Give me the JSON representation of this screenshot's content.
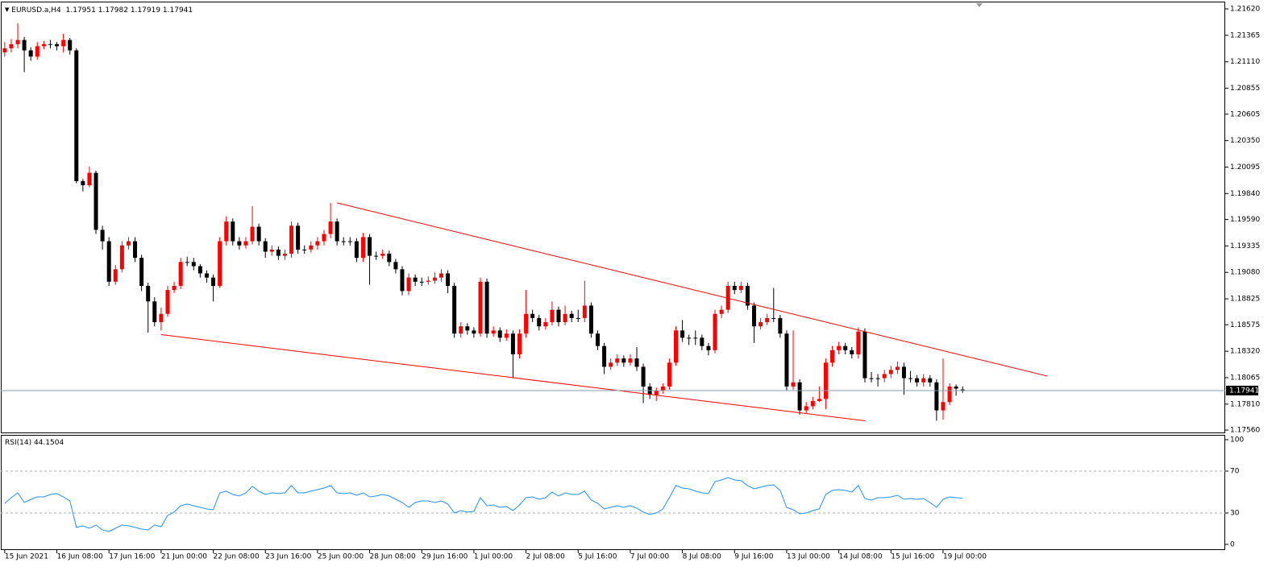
{
  "chart_data": [
    {
      "type": "candlestick",
      "title": "EURUSD.a,H4",
      "categories": [
        "15 Jun 2021",
        null,
        null,
        null,
        null,
        null,
        null,
        null,
        "16 Jun 08:00",
        null,
        null,
        null,
        null,
        null,
        null,
        null,
        "17 Jun 16:00",
        null,
        null,
        null,
        null,
        null,
        null,
        null,
        "21 Jun 00:00",
        null,
        null,
        null,
        null,
        null,
        null,
        null,
        "22 Jun 08:00",
        null,
        null,
        null,
        null,
        null,
        null,
        null,
        "23 Jun 16:00",
        null,
        null,
        null,
        null,
        null,
        null,
        null,
        "25 Jun 00:00",
        null,
        null,
        null,
        null,
        null,
        null,
        null,
        "28 Jun 08:00",
        null,
        null,
        null,
        null,
        null,
        null,
        null,
        "29 Jun 16:00",
        null,
        null,
        null,
        null,
        null,
        null,
        null,
        "1 Jul 00:00",
        null,
        null,
        null,
        null,
        null,
        null,
        null,
        "2 Jul 08:00",
        null,
        null,
        null,
        null,
        null,
        null,
        null,
        "5 Jul 16:00",
        null,
        null,
        null,
        null,
        null,
        null,
        null,
        "7 Jul 00:00",
        null,
        null,
        null,
        null,
        null,
        null,
        null,
        "8 Jul 08:00",
        null,
        null,
        null,
        null,
        null,
        null,
        null,
        "9 Jul 16:00",
        null,
        null,
        null,
        null,
        null,
        null,
        null,
        "13 Jul 00:00",
        null,
        null,
        null,
        null,
        null,
        null,
        null,
        "14 Jul 08:00",
        null,
        null,
        null,
        null,
        null,
        null,
        null,
        "15 Jul 16:00",
        null,
        null,
        null,
        null,
        null,
        null,
        null,
        "19 Jul 00:00",
        null,
        null,
        null
      ],
      "values": [
        [
          1.212,
          1.213,
          1.2116,
          1.2124
        ],
        [
          1.2124,
          1.2133,
          1.212,
          1.2128
        ],
        [
          1.2128,
          1.2148,
          1.2124,
          1.2132
        ],
        [
          1.2132,
          1.2135,
          1.2101,
          1.2122
        ],
        [
          1.2122,
          1.2125,
          1.2112,
          1.2116
        ],
        [
          1.2116,
          1.213,
          1.2113,
          1.2126
        ],
        [
          1.2126,
          1.2131,
          1.2123,
          1.2128
        ],
        [
          1.2128,
          1.2132,
          1.2124,
          1.2128
        ],
        [
          1.2128,
          1.213,
          1.2122,
          1.2126
        ],
        [
          1.2126,
          1.2138,
          1.212,
          1.2132
        ],
        [
          1.2132,
          1.2134,
          1.2118,
          1.2122
        ],
        [
          1.2122,
          1.2124,
          1.1994,
          1.1996
        ],
        [
          1.1996,
          1.1998,
          1.1986,
          1.1992
        ],
        [
          1.1992,
          1.201,
          1.199,
          1.2004
        ],
        [
          1.2004,
          1.2006,
          1.1945,
          1.1949
        ],
        [
          1.1949,
          1.1953,
          1.193,
          1.1938
        ],
        [
          1.1938,
          1.1942,
          1.1895,
          1.1899
        ],
        [
          1.1899,
          1.1915,
          1.1896,
          1.1911
        ],
        [
          1.1911,
          1.1938,
          1.1908,
          1.1934
        ],
        [
          1.1934,
          1.1942,
          1.193,
          1.1938
        ],
        [
          1.1938,
          1.1942,
          1.1918,
          1.1922
        ],
        [
          1.1922,
          1.1925,
          1.189,
          1.1895
        ],
        [
          1.1895,
          1.1898,
          1.185,
          1.188
        ],
        [
          1.188,
          1.1884,
          1.1856,
          1.186
        ],
        [
          1.186,
          1.1874,
          1.1852,
          1.1868
        ],
        [
          1.1868,
          1.1895,
          1.1865,
          1.1891
        ],
        [
          1.1891,
          1.1899,
          1.1888,
          1.1895
        ],
        [
          1.1895,
          1.1922,
          1.1892,
          1.1918
        ],
        [
          1.1918,
          1.1923,
          1.1914,
          1.1918
        ],
        [
          1.1918,
          1.1922,
          1.191,
          1.1914
        ],
        [
          1.1914,
          1.1916,
          1.1903,
          1.1907
        ],
        [
          1.1907,
          1.191,
          1.1898,
          1.1903
        ],
        [
          1.1903,
          1.1906,
          1.188,
          1.1895
        ],
        [
          1.1895,
          1.1942,
          1.1893,
          1.1938
        ],
        [
          1.1938,
          1.1962,
          1.1934,
          1.1957
        ],
        [
          1.1957,
          1.196,
          1.1934,
          1.1938
        ],
        [
          1.1938,
          1.1942,
          1.193,
          1.1934
        ],
        [
          1.1934,
          1.1942,
          1.1931,
          1.1938
        ],
        [
          1.1938,
          1.1972,
          1.1935,
          1.1952
        ],
        [
          1.1952,
          1.1955,
          1.1934,
          1.1938
        ],
        [
          1.1938,
          1.1941,
          1.1922,
          1.1928
        ],
        [
          1.1928,
          1.1934,
          1.1924,
          1.193
        ],
        [
          1.193,
          1.1933,
          1.192,
          1.1924
        ],
        [
          1.1924,
          1.193,
          1.192,
          1.1926
        ],
        [
          1.1926,
          1.1957,
          1.1922,
          1.1953
        ],
        [
          1.1953,
          1.1956,
          1.1926,
          1.193
        ],
        [
          1.193,
          1.1934,
          1.1926,
          1.193
        ],
        [
          1.193,
          1.1938,
          1.1927,
          1.1934
        ],
        [
          1.1934,
          1.1942,
          1.193,
          1.1938
        ],
        [
          1.1938,
          1.1949,
          1.1934,
          1.1945
        ],
        [
          1.1945,
          1.1975,
          1.1941,
          1.1957
        ],
        [
          1.1957,
          1.196,
          1.1934,
          1.1938
        ],
        [
          1.1938,
          1.1942,
          1.1934,
          1.1938
        ],
        [
          1.1938,
          1.1942,
          1.1934,
          1.1938
        ],
        [
          1.1938,
          1.1941,
          1.1918,
          1.1922
        ],
        [
          1.1922,
          1.1946,
          1.1918,
          1.1942
        ],
        [
          1.1942,
          1.1945,
          1.1896,
          1.1924
        ],
        [
          1.1924,
          1.1928,
          1.192,
          1.1924
        ],
        [
          1.1924,
          1.193,
          1.1921,
          1.1926
        ],
        [
          1.1926,
          1.1929,
          1.1914,
          1.1918
        ],
        [
          1.1918,
          1.1921,
          1.1907,
          1.1911
        ],
        [
          1.1911,
          1.1914,
          1.1886,
          1.189
        ],
        [
          1.189,
          1.1907,
          1.1886,
          1.1903
        ],
        [
          1.1903,
          1.1906,
          1.1895,
          1.1899
        ],
        [
          1.1899,
          1.1903,
          1.1895,
          1.1899
        ],
        [
          1.1899,
          1.1904,
          1.1896,
          1.19
        ],
        [
          1.19,
          1.1908,
          1.1897,
          1.1903
        ],
        [
          1.1903,
          1.1911,
          1.1899,
          1.1907
        ],
        [
          1.1907,
          1.191,
          1.1888,
          1.1895
        ],
        [
          1.1895,
          1.1898,
          1.1845,
          1.1849
        ],
        [
          1.1849,
          1.186,
          1.1845,
          1.1856
        ],
        [
          1.1856,
          1.1859,
          1.1848,
          1.1852
        ],
        [
          1.1852,
          1.1855,
          1.1845,
          1.1849
        ],
        [
          1.1849,
          1.1903,
          1.1846,
          1.1899
        ],
        [
          1.1899,
          1.1902,
          1.1845,
          1.1849
        ],
        [
          1.1849,
          1.1856,
          1.1846,
          1.1852
        ],
        [
          1.1852,
          1.1855,
          1.1841,
          1.1845
        ],
        [
          1.1845,
          1.1853,
          1.1842,
          1.1849
        ],
        [
          1.1849,
          1.1852,
          1.1807,
          1.1829
        ],
        [
          1.1829,
          1.1853,
          1.1825,
          1.1849
        ],
        [
          1.1849,
          1.1891,
          1.1845,
          1.1868
        ],
        [
          1.1868,
          1.1872,
          1.186,
          1.1864
        ],
        [
          1.1864,
          1.1867,
          1.1852,
          1.1856
        ],
        [
          1.1856,
          1.1864,
          1.1853,
          1.186
        ],
        [
          1.186,
          1.188,
          1.1857,
          1.1872
        ],
        [
          1.1872,
          1.1875,
          1.1856,
          1.186
        ],
        [
          1.186,
          1.1876,
          1.1857,
          1.1868
        ],
        [
          1.1868,
          1.1871,
          1.186,
          1.1864
        ],
        [
          1.1864,
          1.1872,
          1.186,
          1.1864
        ],
        [
          1.1864,
          1.19,
          1.186,
          1.1876
        ],
        [
          1.1876,
          1.1879,
          1.1845,
          1.1849
        ],
        [
          1.1849,
          1.1852,
          1.1833,
          1.1837
        ],
        [
          1.1837,
          1.184,
          1.181,
          1.1817
        ],
        [
          1.1817,
          1.1825,
          1.1814,
          1.1821
        ],
        [
          1.1821,
          1.1829,
          1.1818,
          1.1825
        ],
        [
          1.1825,
          1.1828,
          1.1817,
          1.1821
        ],
        [
          1.1821,
          1.1829,
          1.1818,
          1.1825
        ],
        [
          1.1825,
          1.1836,
          1.1813,
          1.1817
        ],
        [
          1.1817,
          1.182,
          1.1782,
          1.1798
        ],
        [
          1.1798,
          1.1801,
          1.1786,
          1.179
        ],
        [
          1.179,
          1.1797,
          1.1784,
          1.1794
        ],
        [
          1.1794,
          1.1801,
          1.1791,
          1.1798
        ],
        [
          1.1798,
          1.1825,
          1.1795,
          1.1821
        ],
        [
          1.1821,
          1.1856,
          1.1818,
          1.1852
        ],
        [
          1.1852,
          1.1862,
          1.1841,
          1.1845
        ],
        [
          1.1845,
          1.1848,
          1.1838,
          1.1845
        ],
        [
          1.1845,
          1.1852,
          1.1838,
          1.1845
        ],
        [
          1.1845,
          1.1848,
          1.1833,
          1.1837
        ],
        [
          1.1837,
          1.184,
          1.1828,
          1.1833
        ],
        [
          1.1833,
          1.1872,
          1.183,
          1.1868
        ],
        [
          1.1868,
          1.1876,
          1.1864,
          1.1872
        ],
        [
          1.1872,
          1.1899,
          1.1869,
          1.1895
        ],
        [
          1.1895,
          1.1899,
          1.1887,
          1.1891
        ],
        [
          1.1891,
          1.1899,
          1.1888,
          1.1895
        ],
        [
          1.1895,
          1.1898,
          1.1872,
          1.1876
        ],
        [
          1.1876,
          1.1879,
          1.184,
          1.1856
        ],
        [
          1.1856,
          1.1864,
          1.1853,
          1.186
        ],
        [
          1.186,
          1.1868,
          1.1857,
          1.1864
        ],
        [
          1.1864,
          1.1893,
          1.186,
          1.1864
        ],
        [
          1.1864,
          1.1867,
          1.1845,
          1.1849
        ],
        [
          1.1849,
          1.1852,
          1.1794,
          1.1798
        ],
        [
          1.1798,
          1.1852,
          1.1795,
          1.1802
        ],
        [
          1.1802,
          1.1805,
          1.1771,
          1.1775
        ],
        [
          1.1775,
          1.1783,
          1.1772,
          1.1779
        ],
        [
          1.1779,
          1.1788,
          1.1776,
          1.1784
        ],
        [
          1.1784,
          1.1798,
          1.1783,
          1.1786
        ],
        [
          1.1786,
          1.1825,
          1.1776,
          1.1821
        ],
        [
          1.1821,
          1.1837,
          1.1817,
          1.1833
        ],
        [
          1.1833,
          1.1841,
          1.1829,
          1.1837
        ],
        [
          1.1837,
          1.184,
          1.1829,
          1.1833
        ],
        [
          1.1833,
          1.1836,
          1.1825,
          1.1829
        ],
        [
          1.1829,
          1.1855,
          1.1825,
          1.1851
        ],
        [
          1.1851,
          1.1854,
          1.1802,
          1.1806
        ],
        [
          1.1806,
          1.1812,
          1.1802,
          1.1806
        ],
        [
          1.1806,
          1.181,
          1.1798,
          1.1806
        ],
        [
          1.1806,
          1.1814,
          1.1802,
          1.181
        ],
        [
          1.181,
          1.1818,
          1.1806,
          1.1814
        ],
        [
          1.1814,
          1.1822,
          1.181,
          1.1817
        ],
        [
          1.1817,
          1.1821,
          1.179,
          1.1806
        ],
        [
          1.1806,
          1.1813,
          1.1802,
          1.1806
        ],
        [
          1.1806,
          1.1809,
          1.1798,
          1.1802
        ],
        [
          1.1802,
          1.181,
          1.1798,
          1.1806
        ],
        [
          1.1806,
          1.1809,
          1.1798,
          1.1802
        ],
        [
          1.1802,
          1.1805,
          1.1765,
          1.1775
        ],
        [
          1.1775,
          1.1825,
          1.1766,
          1.1783
        ],
        [
          1.1783,
          1.1801,
          1.178,
          1.1798
        ],
        [
          1.1798,
          1.18,
          1.1789,
          1.1796
        ],
        [
          1.17951,
          1.17982,
          1.17919,
          1.17941
        ]
      ],
      "up_color": "#ff0000",
      "down_color": "#000000",
      "xlim": [
        -0.6,
        187.3
      ],
      "ylim": [
        1.17537,
        1.2169
      ],
      "yticks": [
        {
          "value": 1.2162,
          "label": "1.21620"
        },
        1.21365,
        {
          "value": 1.2111,
          "label": "1.21110"
        },
        1.20855,
        1.20605,
        {
          "value": 1.2035,
          "label": "1.20350"
        },
        1.20095,
        {
          "value": 1.1984,
          "label": "1.19840"
        },
        {
          "value": 1.1959,
          "label": "1.19590"
        },
        1.19335,
        {
          "value": 1.1908,
          "label": "1.19080"
        },
        1.18825,
        1.18575,
        {
          "value": 1.1832,
          "label": "1.18320"
        },
        1.18065,
        {
          "value": 1.1781,
          "label": "1.17810"
        },
        {
          "value": 1.1756,
          "label": "1.17560"
        }
      ],
      "trendlines": [
        {
          "x": [
            51,
            160
          ],
          "y": [
            1.1975,
            1.1808
          ]
        },
        {
          "x": [
            24,
            132
          ],
          "y": [
            1.1848,
            1.1765
          ]
        }
      ],
      "trendline_color": "#ff0000",
      "price_line_color": "#8a9aa8"
    },
    {
      "type": "line",
      "title": "RSI(14)",
      "color": "#1e90ff",
      "values": [
        39.2,
        44.6,
        49.2,
        40.0,
        43.1,
        45.4,
        45.4,
        47.7,
        48.5,
        45.4,
        41.5,
        16.2,
        17.7,
        15.4,
        18.5,
        13.8,
        12.3,
        15.4,
        18.5,
        17.7,
        16.2,
        14.6,
        13.8,
        18.5,
        16.9,
        27.7,
        30.8,
        36.9,
        38.5,
        36.9,
        35.4,
        33.8,
        33.1,
        49.2,
        50.8,
        47.7,
        46.2,
        49.2,
        55.4,
        50.8,
        47.7,
        49.2,
        48.5,
        49.2,
        56.2,
        49.2,
        49.2,
        50.8,
        52.3,
        53.8,
        56.2,
        49.2,
        48.5,
        49.2,
        46.9,
        49.2,
        45.4,
        46.2,
        47.7,
        46.2,
        43.1,
        40.0,
        35.4,
        40.0,
        41.5,
        41.5,
        40.0,
        41.5,
        38.5,
        30.0,
        32.3,
        30.8,
        31.5,
        44.6,
        36.9,
        37.7,
        35.4,
        36.2,
        32.3,
        37.7,
        44.6,
        45.4,
        43.1,
        44.6,
        50.0,
        46.2,
        49.2,
        47.7,
        47.7,
        50.8,
        42.3,
        39.2,
        33.8,
        35.4,
        36.9,
        35.4,
        36.9,
        34.6,
        30.8,
        28.5,
        30.0,
        33.8,
        44.6,
        56.2,
        53.8,
        53.1,
        50.8,
        49.2,
        48.5,
        60.0,
        61.5,
        63.8,
        61.5,
        60.8,
        56.2,
        53.1,
        54.6,
        56.2,
        56.9,
        51.5,
        35.4,
        33.1,
        29.2,
        30.0,
        32.3,
        33.8,
        47.7,
        51.5,
        52.3,
        51.5,
        50.0,
        56.2,
        43.8,
        42.3,
        44.6,
        44.6,
        45.4,
        46.9,
        43.1,
        43.8,
        43.1,
        43.8,
        40.0,
        35.4,
        43.1,
        45.4,
        44.6,
        44.1504
      ],
      "ylim": [
        -5.4,
        104.6
      ],
      "yticks": [
        0,
        30,
        70,
        100
      ],
      "levels": [
        30,
        70
      ]
    }
  ]
}
